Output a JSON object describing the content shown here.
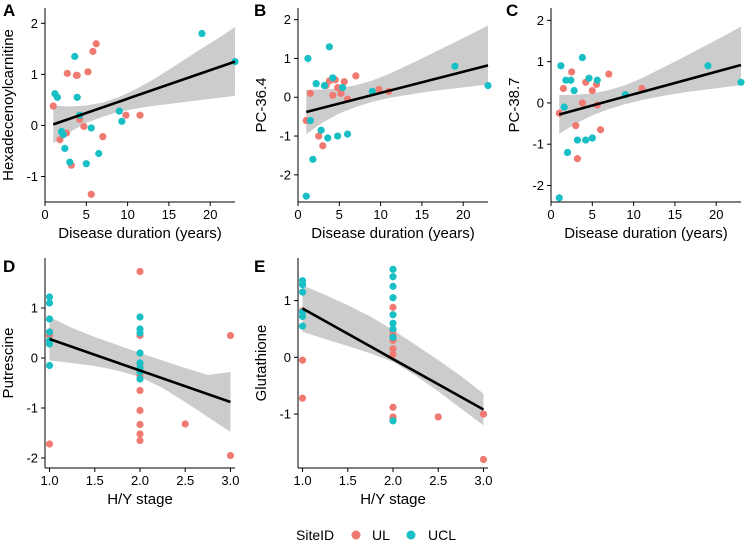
{
  "colors": {
    "UL": "#F07A72",
    "UCL": "#18BFC4",
    "band": "#C9C9C9",
    "line": "#000000"
  },
  "legend": {
    "title": "SiteID",
    "items": [
      {
        "label": "UL",
        "color": "#F07A72"
      },
      {
        "label": "UCL",
        "color": "#18BFC4"
      }
    ]
  },
  "chart_data": [
    {
      "panel": "A",
      "type": "scatter",
      "xlabel": "Disease duration (years)",
      "ylabel": "Hexadecenoylcarnitine",
      "xlim": [
        0,
        23
      ],
      "ylim": [
        -1.5,
        2.3
      ],
      "xticks": [
        0,
        5,
        10,
        15,
        20
      ],
      "yticks": [
        -1,
        0,
        1,
        2
      ],
      "fit": {
        "x": [
          1,
          23
        ],
        "y": [
          0.02,
          1.25
        ]
      },
      "band": {
        "x": [
          1,
          3,
          5,
          7,
          9,
          11,
          13,
          15,
          17,
          19,
          21,
          23
        ],
        "lower": [
          -0.35,
          -0.13,
          0.05,
          0.17,
          0.27,
          0.33,
          0.38,
          0.42,
          0.46,
          0.5,
          0.54,
          0.58
        ],
        "upper": [
          0.39,
          0.37,
          0.39,
          0.45,
          0.56,
          0.71,
          0.89,
          1.09,
          1.3,
          1.51,
          1.71,
          1.93
        ]
      },
      "series": [
        {
          "name": "UL",
          "points": [
            [
              1,
              0.38
            ],
            [
              1.8,
              -0.28
            ],
            [
              2.7,
              1.02
            ],
            [
              3.2,
              -0.78
            ],
            [
              3.8,
              0.98
            ],
            [
              4.2,
              0.12
            ],
            [
              4.7,
              -0.02
            ],
            [
              5.2,
              1.05
            ],
            [
              5.6,
              -1.35
            ],
            [
              6.2,
              1.6
            ],
            [
              7.0,
              -0.22
            ],
            [
              5.8,
              1.45
            ],
            [
              9.8,
              0.2
            ],
            [
              11.5,
              0.2
            ],
            [
              2.6,
              -0.15
            ],
            [
              3.9,
              0.98
            ]
          ]
        },
        {
          "name": "UCL",
          "points": [
            [
              1.2,
              0.62
            ],
            [
              1.5,
              0.55
            ],
            [
              2.0,
              -0.12
            ],
            [
              2.4,
              -0.45
            ],
            [
              3.0,
              -0.72
            ],
            [
              3.6,
              1.35
            ],
            [
              3.9,
              0.55
            ],
            [
              4.2,
              0.2
            ],
            [
              5.0,
              -0.75
            ],
            [
              5.6,
              -0.05
            ],
            [
              6.5,
              -0.55
            ],
            [
              9.0,
              0.28
            ],
            [
              9.3,
              0.08
            ],
            [
              19.0,
              1.8
            ],
            [
              23.0,
              1.25
            ],
            [
              2.2,
              -0.18
            ]
          ]
        }
      ]
    },
    {
      "panel": "B",
      "type": "scatter",
      "xlabel": "Disease duration (years)",
      "ylabel": "PC-36.4",
      "xlim": [
        0,
        23
      ],
      "ylim": [
        -2.7,
        2.3
      ],
      "xticks": [
        0,
        5,
        10,
        15,
        20
      ],
      "yticks": [
        -2,
        -1,
        0,
        1,
        2
      ],
      "fit": {
        "x": [
          1,
          23
        ],
        "y": [
          -0.38,
          0.82
        ]
      },
      "band": {
        "x": [
          1,
          3,
          5,
          7,
          9,
          11,
          13,
          15,
          17,
          19,
          21,
          23
        ],
        "lower": [
          -0.95,
          -0.65,
          -0.42,
          -0.25,
          -0.12,
          -0.02,
          0.05,
          0.12,
          0.18,
          0.23,
          0.28,
          0.33
        ],
        "upper": [
          0.19,
          0.2,
          0.23,
          0.31,
          0.43,
          0.6,
          0.8,
          1.0,
          1.21,
          1.42,
          1.63,
          1.85
        ]
      },
      "series": [
        {
          "name": "UL",
          "points": [
            [
              1,
              -0.6
            ],
            [
              1.5,
              0.1
            ],
            [
              2.5,
              -1.0
            ],
            [
              3.0,
              -1.25
            ],
            [
              3.8,
              0.42
            ],
            [
              4.2,
              0.05
            ],
            [
              4.8,
              0.25
            ],
            [
              5.2,
              0.1
            ],
            [
              5.6,
              0.4
            ],
            [
              6.0,
              -0.05
            ],
            [
              7.0,
              0.55
            ],
            [
              9.8,
              0.2
            ],
            [
              11.0,
              0.15
            ],
            [
              3.4,
              0.3
            ],
            [
              4.5,
              0.45
            ]
          ]
        },
        {
          "name": "UCL",
          "points": [
            [
              1.0,
              -2.55
            ],
            [
              1.2,
              1.0
            ],
            [
              1.5,
              -0.6
            ],
            [
              1.8,
              -1.6
            ],
            [
              2.2,
              0.35
            ],
            [
              2.8,
              -0.85
            ],
            [
              3.2,
              0.3
            ],
            [
              3.8,
              1.3
            ],
            [
              4.2,
              0.5
            ],
            [
              4.8,
              -1.0
            ],
            [
              5.4,
              0.25
            ],
            [
              6.0,
              -0.95
            ],
            [
              9.0,
              0.15
            ],
            [
              19.0,
              0.8
            ],
            [
              23.0,
              0.3
            ],
            [
              3.6,
              -1.05
            ]
          ]
        }
      ]
    },
    {
      "panel": "C",
      "type": "scatter",
      "xlabel": "Disease duration (years)",
      "ylabel": "PC-38.7",
      "xlim": [
        0,
        23
      ],
      "ylim": [
        -2.4,
        2.3
      ],
      "xticks": [
        0,
        5,
        10,
        15,
        20
      ],
      "yticks": [
        -2,
        -1,
        0,
        1,
        2
      ],
      "fit": {
        "x": [
          1,
          23
        ],
        "y": [
          -0.28,
          0.92
        ]
      },
      "band": {
        "x": [
          1,
          3,
          5,
          7,
          9,
          11,
          13,
          15,
          17,
          19,
          21,
          23
        ],
        "lower": [
          -0.75,
          -0.5,
          -0.3,
          -0.15,
          -0.03,
          0.07,
          0.15,
          0.22,
          0.28,
          0.33,
          0.38,
          0.43
        ],
        "upper": [
          0.19,
          0.2,
          0.23,
          0.31,
          0.43,
          0.6,
          0.8,
          1.0,
          1.21,
          1.42,
          1.63,
          1.85
        ]
      },
      "series": [
        {
          "name": "UL",
          "points": [
            [
              1,
              -0.25
            ],
            [
              1.5,
              0.35
            ],
            [
              2.5,
              0.75
            ],
            [
              3.0,
              -0.55
            ],
            [
              3.2,
              -1.35
            ],
            [
              3.8,
              0.0
            ],
            [
              4.2,
              0.5
            ],
            [
              5.0,
              0.3
            ],
            [
              5.5,
              0.45
            ],
            [
              6.0,
              -0.65
            ],
            [
              7.0,
              0.7
            ],
            [
              11.0,
              0.35
            ],
            [
              5.6,
              -0.05
            ]
          ]
        },
        {
          "name": "UCL",
          "points": [
            [
              1.0,
              -2.3
            ],
            [
              1.2,
              0.9
            ],
            [
              1.6,
              -0.1
            ],
            [
              2.0,
              -1.2
            ],
            [
              2.4,
              0.55
            ],
            [
              2.8,
              0.3
            ],
            [
              3.2,
              -0.9
            ],
            [
              3.8,
              1.1
            ],
            [
              4.2,
              -0.9
            ],
            [
              4.6,
              0.6
            ],
            [
              5.0,
              -0.85
            ],
            [
              5.6,
              0.55
            ],
            [
              9.0,
              0.2
            ],
            [
              19.0,
              0.9
            ],
            [
              23.0,
              0.5
            ],
            [
              1.8,
              0.55
            ]
          ]
        }
      ]
    },
    {
      "panel": "D",
      "type": "scatter",
      "xlabel": "H/Y stage",
      "ylabel": "Putrescine",
      "xlim": [
        0.95,
        3.05
      ],
      "ylim": [
        -2.2,
        2.0
      ],
      "xticks": [
        1.0,
        1.5,
        2.0,
        2.5,
        3.0
      ],
      "yticks": [
        -2,
        -1,
        0,
        1
      ],
      "fit": {
        "x": [
          1,
          3
        ],
        "y": [
          0.38,
          -0.88
        ]
      },
      "band": {
        "x": [
          1,
          1.25,
          1.5,
          1.75,
          2,
          2.25,
          2.5,
          2.75,
          3
        ],
        "lower": [
          -0.05,
          -0.1,
          -0.16,
          -0.25,
          -0.38,
          -0.6,
          -0.88,
          -1.18,
          -1.48
        ],
        "upper": [
          0.82,
          0.6,
          0.42,
          0.26,
          0.1,
          -0.05,
          -0.2,
          -0.34,
          -0.28
        ]
      },
      "series": [
        {
          "name": "UL",
          "points": [
            [
              1,
              0.52
            ],
            [
              1,
              0.45
            ],
            [
              1,
              -1.72
            ],
            [
              2,
              1.73
            ],
            [
              2,
              0.45
            ],
            [
              2,
              -0.12
            ],
            [
              2,
              -0.35
            ],
            [
              2,
              -0.65
            ],
            [
              2,
              -1.05
            ],
            [
              2,
              -1.33
            ],
            [
              2,
              -1.52
            ],
            [
              2,
              -1.65
            ],
            [
              2.5,
              -1.32
            ],
            [
              3,
              0.45
            ],
            [
              3,
              -1.95
            ]
          ]
        },
        {
          "name": "UCL",
          "points": [
            [
              1,
              1.22
            ],
            [
              1,
              1.1
            ],
            [
              1,
              0.78
            ],
            [
              1,
              0.52
            ],
            [
              1,
              0.35
            ],
            [
              1,
              0.28
            ],
            [
              1,
              -0.15
            ],
            [
              2,
              0.82
            ],
            [
              2,
              0.58
            ],
            [
              2,
              0.5
            ],
            [
              2,
              0.1
            ],
            [
              2,
              -0.1
            ],
            [
              2,
              -0.2
            ],
            [
              2,
              -0.28
            ],
            [
              2,
              -0.42
            ]
          ]
        }
      ]
    },
    {
      "panel": "E",
      "type": "scatter",
      "xlabel": "H/Y stage",
      "ylabel": "Glutathione",
      "xlim": [
        0.95,
        3.05
      ],
      "ylim": [
        -1.95,
        1.75
      ],
      "xticks": [
        1.0,
        1.5,
        2.0,
        2.5,
        3.0
      ],
      "yticks": [
        -1,
        0,
        1
      ],
      "fit": {
        "x": [
          1,
          3
        ],
        "y": [
          0.86,
          -0.92
        ]
      },
      "band": {
        "x": [
          1,
          1.25,
          1.5,
          1.75,
          2,
          2.25,
          2.5,
          2.75,
          3
        ],
        "lower": [
          0.45,
          0.32,
          0.2,
          0.07,
          -0.08,
          -0.32,
          -0.6,
          -0.9,
          -1.2
        ],
        "upper": [
          1.27,
          1.1,
          0.92,
          0.72,
          0.48,
          0.22,
          -0.05,
          -0.33,
          -0.64
        ]
      },
      "series": [
        {
          "name": "UL",
          "points": [
            [
              1,
              -0.05
            ],
            [
              1,
              -0.72
            ],
            [
              2,
              0.88
            ],
            [
              2,
              0.48
            ],
            [
              2,
              0.4
            ],
            [
              2,
              0.3
            ],
            [
              2,
              0.15
            ],
            [
              2,
              0.05
            ],
            [
              2,
              -0.88
            ],
            [
              2,
              -1.05
            ],
            [
              2,
              -1.1
            ],
            [
              2.5,
              -1.05
            ],
            [
              3,
              -1.0
            ],
            [
              3,
              -1.8
            ],
            [
              1,
              0.82
            ]
          ]
        },
        {
          "name": "UCL",
          "points": [
            [
              1,
              1.35
            ],
            [
              1,
              1.28
            ],
            [
              1,
              1.15
            ],
            [
              1,
              0.8
            ],
            [
              1,
              0.72
            ],
            [
              1,
              0.55
            ],
            [
              2,
              1.55
            ],
            [
              2,
              1.42
            ],
            [
              2,
              1.25
            ],
            [
              2,
              1.05
            ],
            [
              2,
              0.75
            ],
            [
              2,
              0.6
            ],
            [
              2,
              0.5
            ],
            [
              2,
              0.35
            ],
            [
              2,
              -1.12
            ]
          ]
        }
      ]
    }
  ]
}
